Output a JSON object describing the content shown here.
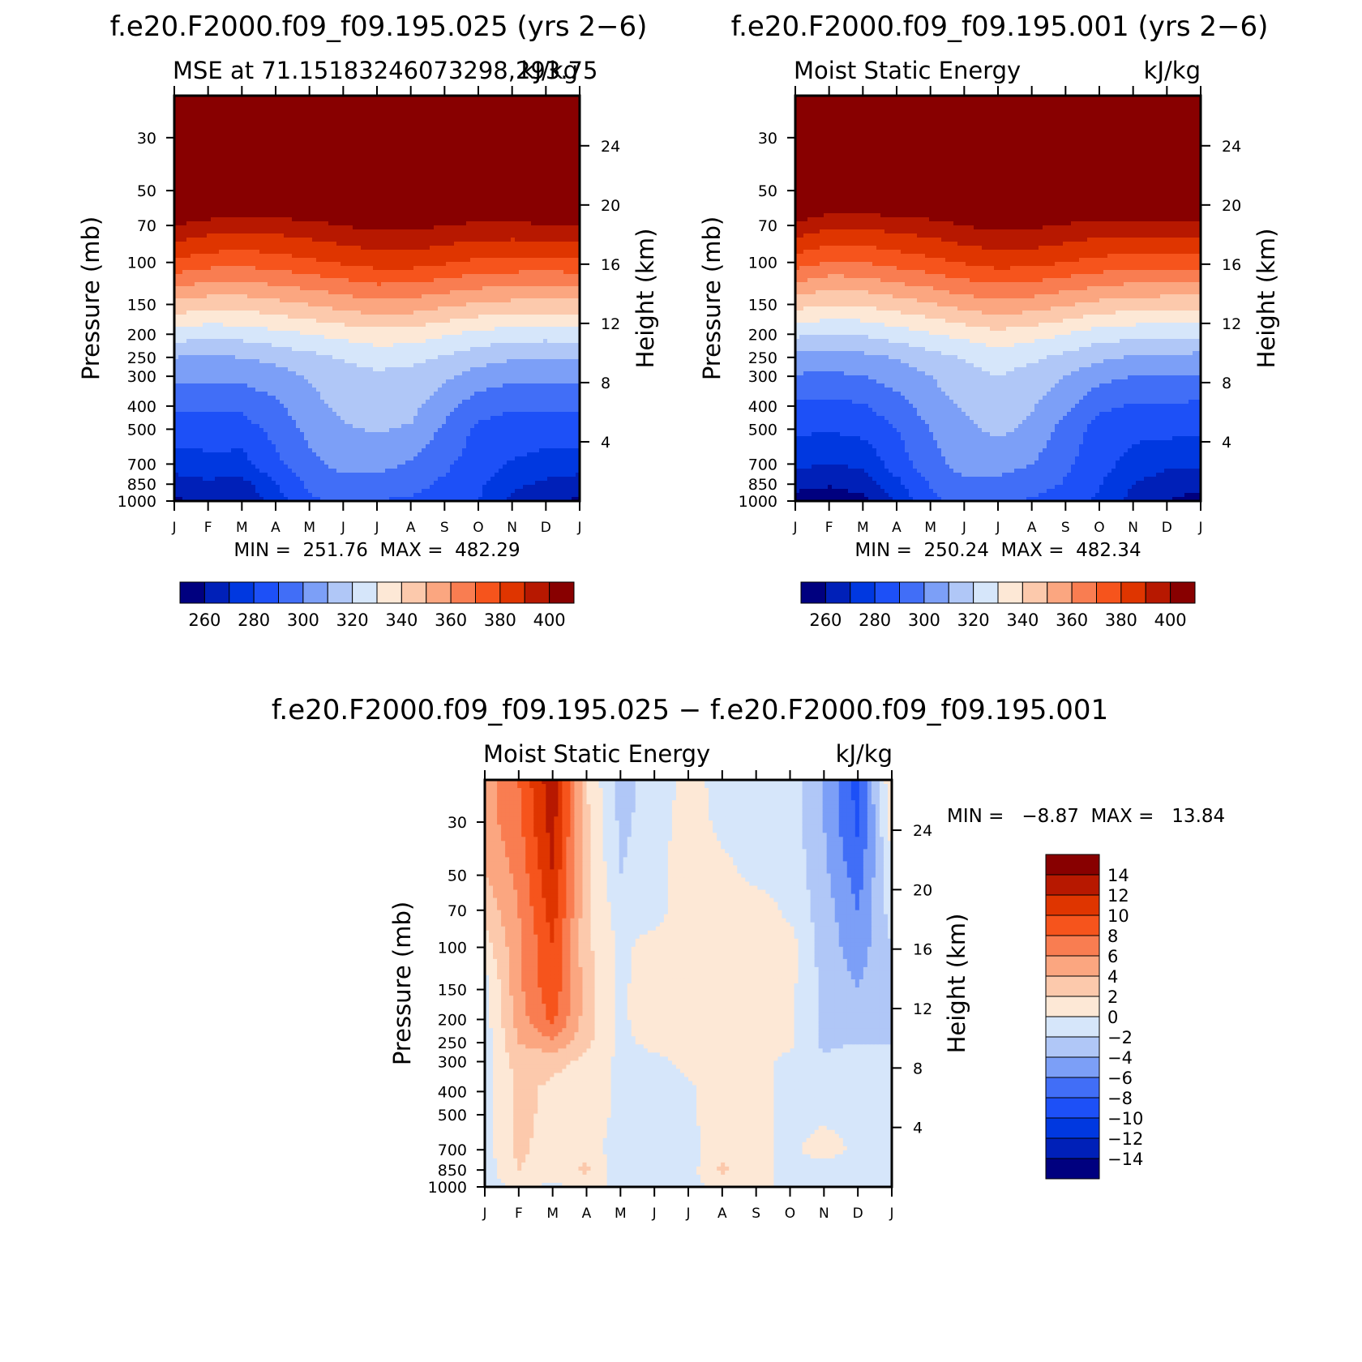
{
  "figure": {
    "top_left_header": "f.e20.F2000.f09_f09.195.025 (yrs 2−6)",
    "top_right_header": "f.e20.F2000.f09_f09.195.001 (yrs 2−6)",
    "bottom_header": "f.e20.F2000.f09_f09.195.025 − f.e20.F2000.f09_f09.195.001"
  },
  "chart_data": [
    {
      "type": "heatmap",
      "id": "case_025",
      "title": "f.e20.F2000.f09_f09.195.025 (yrs 2−6)",
      "left_subtitle": "MSE at 71.15183246073298,293.75",
      "right_subtitle": "kJ/kg",
      "xlabel": "",
      "ylabel": "Pressure (mb)",
      "ylabel_right": "Height (km)",
      "x_ticks": [
        "J",
        "F",
        "M",
        "A",
        "M",
        "J",
        "J",
        "A",
        "S",
        "O",
        "N",
        "D",
        "J"
      ],
      "y_ticks": [
        "30",
        "50",
        "70",
        "100",
        "150",
        "200",
        "250",
        "300",
        "400",
        "500",
        "700",
        "850",
        "1000"
      ],
      "y_ticks_right": [
        "24",
        "20",
        "16",
        "12",
        "8",
        "4"
      ],
      "y_range_mb": [
        1000,
        20
      ],
      "stats": "MIN =  251.76  MAX =  482.29",
      "colorbar_ticks": [
        "260",
        "280",
        "300",
        "320",
        "340",
        "360",
        "380",
        "400"
      ],
      "profile_note": "Monthly MSE values (kJ/kg) by pressure level, Jan..Dec + Jan",
      "values": {
        "1000": [
          258,
          262,
          260,
          275,
          288,
          292,
          290,
          288,
          285,
          280,
          268,
          262,
          258
        ],
        "850": [
          265,
          268,
          266,
          280,
          292,
          297,
          296,
          294,
          288,
          282,
          272,
          268,
          265
        ],
        "700": [
          275,
          277,
          276,
          288,
          297,
          303,
          303,
          299,
          292,
          285,
          279,
          276,
          275
        ],
        "500": [
          285,
          285,
          286,
          293,
          303,
          309,
          311,
          309,
          298,
          288,
          286,
          285,
          285
        ],
        "400": [
          291,
          291,
          292,
          298,
          307,
          312,
          315,
          313,
          304,
          294,
          291,
          291,
          291
        ],
        "300": [
          302,
          302,
          303,
          306,
          311,
          316,
          318,
          317,
          312,
          306,
          303,
          302,
          302
        ],
        "250": [
          310,
          309,
          310,
          313,
          317,
          321,
          324,
          323,
          319,
          314,
          311,
          310,
          310
        ],
        "200": [
          325,
          323,
          324,
          327,
          330,
          333,
          336,
          335,
          331,
          327,
          325,
          324,
          325
        ],
        "150": [
          347,
          344,
          344,
          347,
          350,
          354,
          357,
          356,
          352,
          349,
          347,
          346,
          347
        ],
        "100": [
          378,
          374,
          373,
          375,
          378,
          381,
          384,
          384,
          381,
          378,
          377,
          376,
          378
        ],
        "70": [
          400,
          396,
          394,
          395,
          397,
          400,
          403,
          403,
          400,
          398,
          398,
          399,
          400
        ],
        "50": [
          425,
          420,
          418,
          418,
          420,
          422,
          425,
          425,
          423,
          421,
          421,
          422,
          425
        ],
        "30": [
          462,
          458,
          456,
          456,
          458,
          460,
          462,
          462,
          461,
          459,
          459,
          460,
          462
        ],
        "20": [
          482,
          478,
          476,
          476,
          478,
          480,
          482,
          482,
          481,
          479,
          479,
          480,
          482
        ]
      }
    },
    {
      "type": "heatmap",
      "id": "case_001",
      "title": "f.e20.F2000.f09_f09.195.001 (yrs 2−6)",
      "left_subtitle": "Moist Static Energy",
      "right_subtitle": "kJ/kg",
      "xlabel": "",
      "ylabel": "Pressure (mb)",
      "ylabel_right": "Height (km)",
      "x_ticks": [
        "J",
        "F",
        "M",
        "A",
        "M",
        "J",
        "J",
        "A",
        "S",
        "O",
        "N",
        "D",
        "J"
      ],
      "y_ticks": [
        "30",
        "50",
        "70",
        "100",
        "150",
        "200",
        "250",
        "300",
        "400",
        "500",
        "700",
        "850",
        "1000"
      ],
      "y_ticks_right": [
        "24",
        "20",
        "16",
        "12",
        "8",
        "4"
      ],
      "y_range_mb": [
        1000,
        20
      ],
      "stats": "MIN =  250.24  MAX =  482.34",
      "colorbar_ticks": [
        "260",
        "280",
        "300",
        "320",
        "340",
        "360",
        "380",
        "400"
      ],
      "profile_note": "Monthly MSE values (kJ/kg) by pressure level, Jan..Dec + Jan",
      "values": {
        "1000": [
          256,
          254,
          257,
          272,
          288,
          293,
          291,
          289,
          284,
          278,
          266,
          260,
          256
        ],
        "850": [
          263,
          261,
          264,
          277,
          291,
          298,
          297,
          295,
          289,
          281,
          270,
          265,
          263
        ],
        "700": [
          272,
          270,
          272,
          285,
          296,
          304,
          304,
          300,
          292,
          284,
          276,
          272,
          272
        ],
        "500": [
          282,
          281,
          283,
          290,
          300,
          308,
          312,
          308,
          296,
          286,
          283,
          283,
          282
        ],
        "400": [
          288,
          287,
          289,
          296,
          305,
          311,
          315,
          311,
          303,
          292,
          289,
          289,
          288
        ],
        "300": [
          299,
          298,
          300,
          304,
          310,
          316,
          320,
          316,
          310,
          303,
          300,
          300,
          299
        ],
        "250": [
          307,
          306,
          307,
          311,
          316,
          321,
          325,
          322,
          317,
          312,
          309,
          308,
          307
        ],
        "200": [
          322,
          320,
          321,
          325,
          329,
          333,
          337,
          334,
          330,
          325,
          323,
          322,
          322
        ],
        "150": [
          344,
          340,
          341,
          345,
          349,
          354,
          357,
          355,
          351,
          347,
          345,
          344,
          344
        ],
        "100": [
          375,
          369,
          370,
          374,
          377,
          381,
          384,
          383,
          380,
          377,
          375,
          374,
          375
        ],
        "70": [
          398,
          392,
          392,
          394,
          396,
          400,
          403,
          402,
          399,
          396,
          396,
          398,
          398
        ],
        "50": [
          422,
          416,
          416,
          417,
          419,
          422,
          425,
          424,
          422,
          419,
          419,
          421,
          422
        ],
        "30": [
          460,
          455,
          455,
          456,
          457,
          460,
          462,
          461,
          460,
          458,
          458,
          459,
          460
        ],
        "20": [
          482,
          477,
          476,
          476,
          478,
          480,
          482,
          481,
          480,
          479,
          479,
          480,
          482
        ]
      }
    },
    {
      "type": "heatmap",
      "id": "difference",
      "title": "f.e20.F2000.f09_f09.195.025 − f.e20.F2000.f09_f09.195.001",
      "left_subtitle": "Moist Static Energy",
      "right_subtitle": "kJ/kg",
      "xlabel": "",
      "ylabel": "Pressure (mb)",
      "ylabel_right": "Height (km)",
      "x_ticks": [
        "J",
        "F",
        "M",
        "A",
        "M",
        "J",
        "J",
        "A",
        "S",
        "O",
        "N",
        "D",
        "J"
      ],
      "y_ticks": [
        "30",
        "50",
        "70",
        "100",
        "150",
        "200",
        "250",
        "300",
        "400",
        "500",
        "700",
        "850",
        "1000"
      ],
      "y_ticks_right": [
        "24",
        "20",
        "16",
        "12",
        "8",
        "4"
      ],
      "y_range_mb": [
        1000,
        20
      ],
      "stats": "MIN =   −8.87  MAX =   13.84",
      "colorbar_ticks": [
        "14",
        "12",
        "10",
        "8",
        "6",
        "4",
        "2",
        "0",
        "−2",
        "−4",
        "−6",
        "−8",
        "−10",
        "−12",
        "−14"
      ],
      "profile_note": "Monthly MSE difference (kJ/kg) by pressure level, Jan..Dec + Jan",
      "values": {
        "1000": [
          -1,
          0.5,
          -0.5,
          0.5,
          -0.5,
          -0.5,
          -0.5,
          0.5,
          0.5,
          -0.5,
          -1,
          -1.5,
          -1
        ],
        "850": [
          -1,
          2,
          1,
          2.5,
          -1.5,
          -1.5,
          -1,
          2.5,
          0.5,
          -0.5,
          -1,
          -1.5,
          -1
        ],
        "700": [
          -1,
          2.5,
          1,
          1,
          -1,
          -0.5,
          -1,
          1.5,
          0.5,
          -0.5,
          1,
          -0.5,
          -1
        ],
        "500": [
          -1,
          2.5,
          1.5,
          1,
          -0.5,
          -0.5,
          -0.5,
          1.5,
          0.5,
          -0.5,
          -0.5,
          -0.5,
          -1
        ],
        "400": [
          -1,
          2.5,
          1.5,
          1,
          -0.5,
          -0.5,
          -0.5,
          1.5,
          0.5,
          -0.5,
          -1,
          -0.5,
          -1
        ],
        "300": [
          -1,
          3,
          2.5,
          1.5,
          -0.5,
          -0.5,
          0.5,
          1.5,
          0.5,
          -0.5,
          -1.5,
          -1,
          -1
        ],
        "250": [
          -1,
          4,
          5.5,
          2.5,
          -0.5,
          0.5,
          1.5,
          1,
          0.5,
          0.5,
          -2.5,
          -2,
          -2
        ],
        "200": [
          -1,
          5,
          8.5,
          3,
          -0.5,
          1.5,
          2,
          1,
          0.5,
          0.5,
          -2.5,
          -3,
          -2
        ],
        "150": [
          -1,
          5.5,
          9.5,
          3,
          -0.5,
          1.5,
          2,
          1.5,
          1,
          0.5,
          -2.5,
          -4,
          -2
        ],
        "100": [
          1,
          5.5,
          10,
          2.5,
          -0.5,
          1,
          1.5,
          1.5,
          1.5,
          1,
          -3,
          -5,
          -2
        ],
        "70": [
          2.5,
          6,
          11,
          2.5,
          -1,
          -1,
          1.5,
          1,
          1,
          -0.5,
          -3,
          -6,
          -1
        ],
        "50": [
          4,
          6.5,
          12,
          2.5,
          -2,
          -1,
          1.5,
          0.5,
          -0.5,
          -0.5,
          -3.5,
          -7,
          -0.5
        ],
        "30": [
          5,
          7.5,
          13,
          2.5,
          -2.5,
          -1,
          1,
          -0.5,
          -0.5,
          -1,
          -4,
          -8.5,
          1
        ],
        "20": [
          5,
          8,
          13.5,
          2,
          -3,
          -1,
          0.5,
          -0.5,
          -0.5,
          -1,
          -4,
          -8.8,
          2
        ]
      }
    }
  ]
}
